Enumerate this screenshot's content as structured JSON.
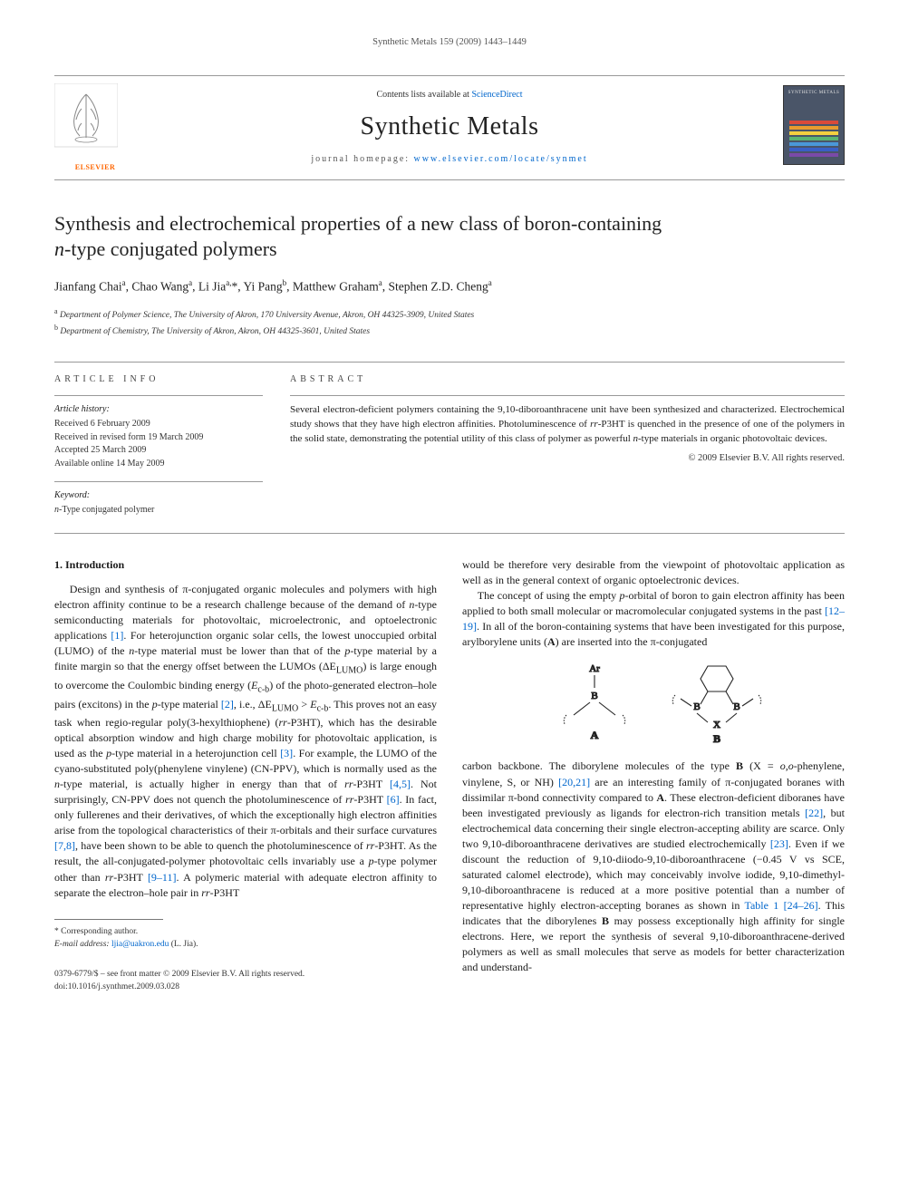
{
  "running_header": "Synthetic Metals 159 (2009) 1443–1449",
  "masthead": {
    "contents_prefix": "Contents lists available at ",
    "contents_link_text": "ScienceDirect",
    "journal_title": "Synthetic Metals",
    "homepage_prefix": "journal homepage: ",
    "homepage_link_text": "www.elsevier.com/locate/synmet",
    "publisher_logo_text": "ELSEVIER",
    "cover_title": "SYNTHETIC METALS",
    "cover_bar_colors": [
      "#d94a3a",
      "#e89b2f",
      "#f4d03f",
      "#5bb572",
      "#4a98d8",
      "#3a5fc4",
      "#7a4aa8"
    ]
  },
  "article": {
    "title_line1": "Synthesis and electrochemical properties of a new class of boron-containing",
    "title_line2": "n-type conjugated polymers",
    "authors_html": "Jianfang Chai<sup>a</sup>, Chao Wang<sup>a</sup>, Li Jia<sup>a,</sup>*, Yi Pang<sup>b</sup>, Matthew Graham<sup>a</sup>, Stephen Z.D. Cheng<sup>a</sup>",
    "affiliation_a": "Department of Polymer Science, The University of Akron, 170 University Avenue, Akron, OH 44325-3909, United States",
    "affiliation_b": "Department of Chemistry, The University of Akron, Akron, OH 44325-3601, United States"
  },
  "meta": {
    "info_heading": "ARTICLE INFO",
    "history_label": "Article history:",
    "history_items": [
      "Received 6 February 2009",
      "Received in revised form 19 March 2009",
      "Accepted 25 March 2009",
      "Available online 14 May 2009"
    ],
    "keyword_label": "Keyword:",
    "keywords": [
      "n-Type conjugated polymer"
    ]
  },
  "abstract": {
    "heading": "ABSTRACT",
    "text": "Several electron-deficient polymers containing the 9,10-diboroanthracene unit have been synthesized and characterized. Electrochemical study shows that they have high electron affinities. Photoluminescence of rr-P3HT is quenched in the presence of one of the polymers in the solid state, demonstrating the potential utility of this class of polymer as powerful n-type materials in organic photovoltaic devices.",
    "copyright": "© 2009 Elsevier B.V. All rights reserved."
  },
  "body": {
    "section1_heading": "1.  Introduction",
    "para1": "Design and synthesis of π-conjugated organic molecules and polymers with high electron affinity continue to be a research challenge because of the demand of n-type semiconducting materials for photovoltaic, microelectronic, and optoelectronic applications [1]. For heterojunction organic solar cells, the lowest unoccupied orbital (LUMO) of the n-type material must be lower than that of the p-type material by a finite margin so that the energy offset between the LUMOs (ΔE_LUMO) is large enough to overcome the Coulombic binding energy (E_c-b) of the photo-generated electron–hole pairs (excitons) in the p-type material [2], i.e., ΔE_LUMO > E_c-b. This proves not an easy task when regio-regular poly(3-hexylthiophene) (rr-P3HT), which has the desirable optical absorption window and high charge mobility for photovoltaic application, is used as the p-type material in a heterojunction cell [3]. For example, the LUMO of the cyano-substituted poly(phenylene vinylene) (CN-PPV), which is normally used as the n-type material, is actually higher in energy than that of rr-P3HT [4,5]. Not surprisingly, CN-PPV does not quench the photoluminescence of rr-P3HT [6]. In fact, only fullerenes and their derivatives, of which the exceptionally high electron affinities arise from the topological characteristics of their π-orbitals and their surface curvatures [7,8], have been shown to be able to quench the photoluminescence of rr-P3HT. As the result, the all-conjugated-polymer photovoltaic cells invariably use a p-type polymer other than rr-P3HT [9–11]. A polymeric material with adequate electron affinity to separate the electron–hole pair in rr-P3HT",
    "para2a": "would be therefore very desirable from the viewpoint of photovoltaic application as well as in the general context of organic optoelectronic devices.",
    "para2b": "The concept of using the empty p-orbital of boron to gain electron affinity has been applied to both small molecular or macromolecular conjugated systems in the past [12–19]. In all of the boron-containing systems that have been investigated for this purpose, arylborylene units (A) are inserted into the π-conjugated",
    "para3": "carbon backbone. The diborylene molecules of the type B (X = o,o-phenylene, vinylene, S, or NH) [20,21] are an interesting family of π-conjugated boranes with dissimilar π-bond connectivity compared to A. These electron-deficient diboranes have been investigated previously as ligands for electron-rich transition metals [22], but electrochemical data concerning their single electron-accepting ability are scarce. Only two 9,10-diboroanthracene derivatives are studied electrochemically [23]. Even if we discount the reduction of 9,10-diiodo-9,10-diboroanthracene (−0.45 V vs SCE, saturated calomel electrode), which may conceivably involve iodide, 9,10-dimethyl-9,10-diboroanthracene is reduced at a more positive potential than a number of representative highly electron-accepting boranes as shown in Table 1 [24–26]. This indicates that the diborylenes B may possess exceptionally high affinity for single electrons. Here, we report the synthesis of several 9,10-diboroanthracene-derived polymers as well as small molecules that serve as models for better characterization and understand-"
  },
  "structure": {
    "label_A": "A",
    "label_B": "B",
    "label_Ar": "Ar",
    "label_X": "X"
  },
  "footnotes": {
    "corr": "Corresponding author.",
    "email_label": "E-mail address:",
    "email": "ljia@uakron.edu",
    "email_suffix": "(L. Jia)."
  },
  "footer": {
    "rights": "0379-6779/$ – see front matter © 2009 Elsevier B.V. All rights reserved.",
    "doi": "doi:10.1016/j.synthmet.2009.03.028"
  },
  "colors": {
    "link": "#0066cc",
    "text": "#1a1a1a",
    "rule": "#999999",
    "elsevier_orange": "#ff6600"
  }
}
